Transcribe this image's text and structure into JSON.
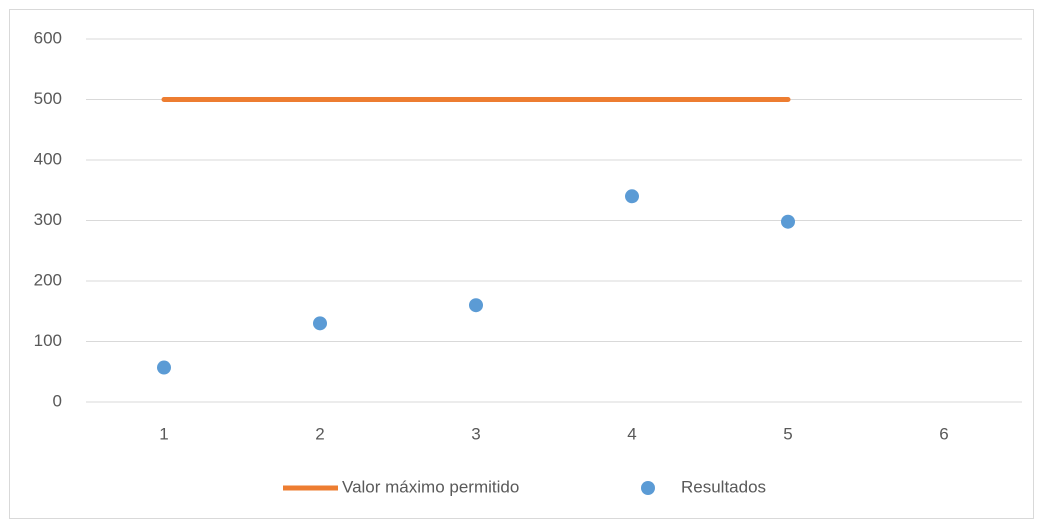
{
  "chart_data": {
    "type": "scatter",
    "series": [
      {
        "name": "Valor máximo permitido",
        "color": "#ed7d31",
        "style": "line",
        "x": [
          1,
          2,
          3,
          4,
          5
        ],
        "values": [
          500,
          500,
          500,
          500,
          500
        ]
      },
      {
        "name": "Resultados",
        "color": "#5b9bd5",
        "style": "marker",
        "x": [
          1,
          2,
          3,
          4,
          5
        ],
        "values": [
          57,
          130,
          160,
          340,
          298
        ]
      }
    ],
    "xlim": [
      0.5,
      6.5
    ],
    "xticks": [
      1,
      2,
      3,
      4,
      5,
      6
    ],
    "ylim": [
      0,
      600
    ],
    "yticks": [
      0,
      100,
      200,
      300,
      400,
      500,
      600
    ],
    "grid": true,
    "legend": "bottom"
  }
}
